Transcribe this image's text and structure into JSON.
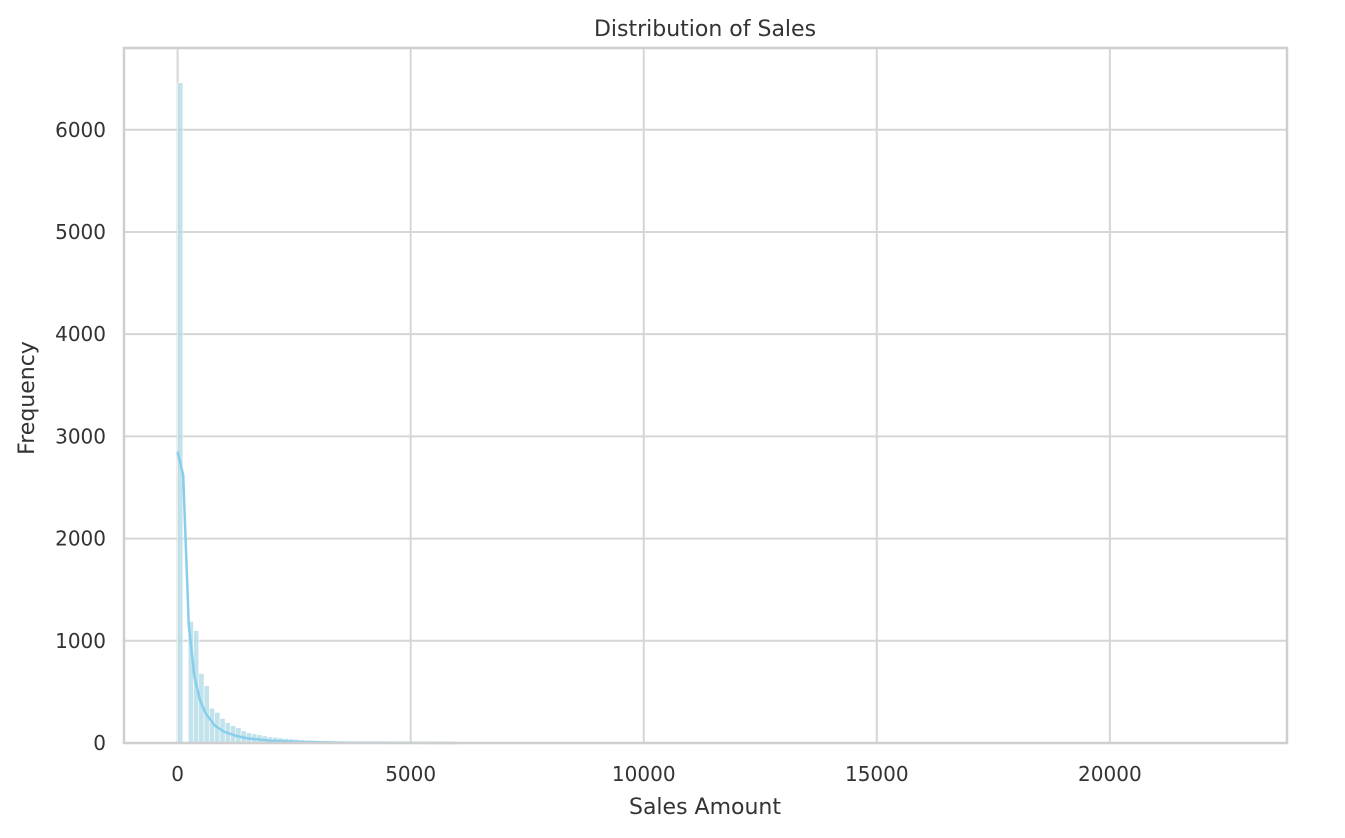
{
  "chart_data": {
    "type": "bar",
    "title": "Distribution of Sales",
    "xlabel": "Sales Amount",
    "ylabel": "Frequency",
    "xlim": [
      -1150,
      23800
    ],
    "ylim": [
      0,
      6800
    ],
    "x_ticks": [
      0,
      5000,
      10000,
      15000,
      20000
    ],
    "y_ticks": [
      0,
      1000,
      2000,
      3000,
      4000,
      5000,
      6000
    ],
    "grid": true,
    "colors": {
      "bars": "#add8e6",
      "kde_line": "#87ceeb",
      "grid": "#d6d6d6",
      "text": "#333333"
    },
    "bins": {
      "start": 0.44,
      "width": 113.4,
      "counts": [
        6460,
        0,
        1190,
        1100,
        680,
        560,
        340,
        300,
        240,
        200,
        170,
        150,
        120,
        100,
        90,
        80,
        70,
        60,
        55,
        50,
        45,
        40,
        35,
        30,
        28,
        26,
        24,
        22,
        20,
        18,
        16,
        15,
        14,
        13,
        12,
        11,
        10,
        9,
        8,
        7,
        6,
        6,
        5,
        5,
        4,
        4,
        3,
        3,
        3,
        2
      ]
    },
    "kde": {
      "x": [
        0,
        120,
        240,
        360,
        480,
        600,
        800,
        1000,
        1250,
        1500,
        2000,
        2500,
        3000,
        3500,
        4000,
        5000,
        6000
      ],
      "y": [
        2850,
        2620,
        1150,
        650,
        420,
        290,
        170,
        110,
        70,
        45,
        22,
        12,
        7,
        4,
        3,
        1,
        0
      ]
    }
  }
}
